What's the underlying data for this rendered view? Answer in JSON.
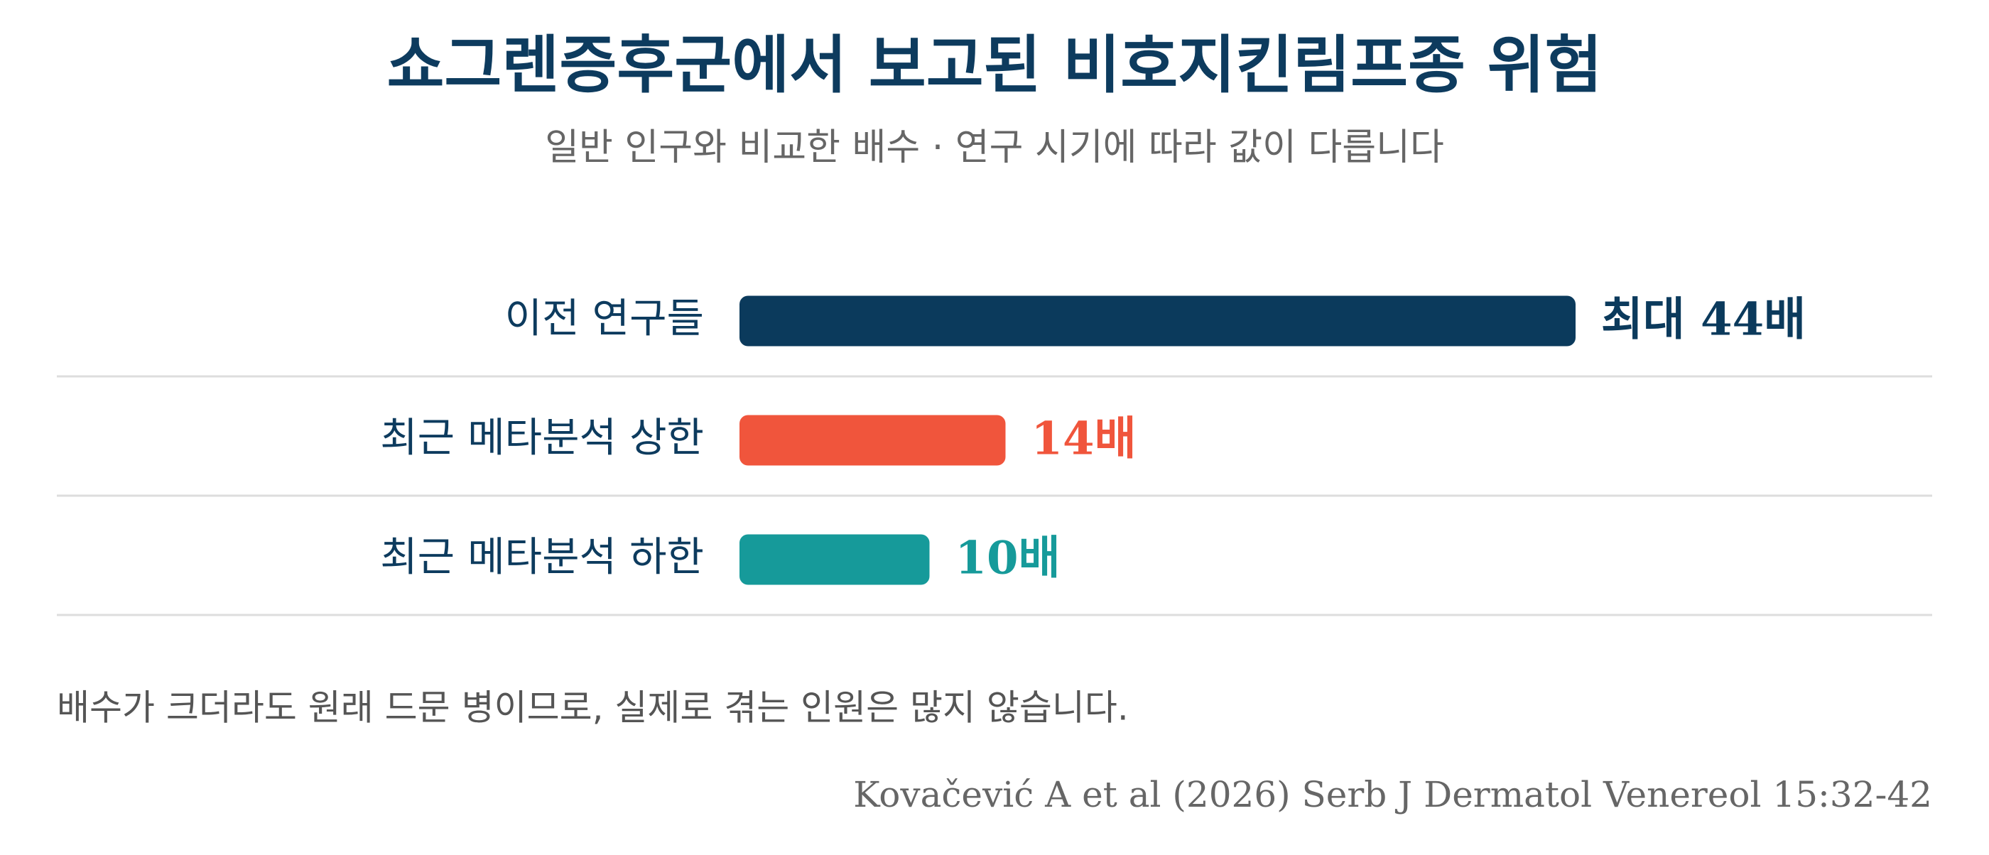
{
  "chart_data": {
    "type": "hbar",
    "title": "쇼그렌증후군에서 보고된 비호지킨림프종 위험",
    "subtitle": "일반 인구와 비교한 배수 · 연구 시기에 따라 값이 다릅니다",
    "categories": [
      "이전 연구들",
      "최근 메타분석 상한",
      "최근 메타분석 하한"
    ],
    "values": [
      44,
      14,
      10
    ],
    "value_labels": [
      "최대 44배",
      "14배",
      "10배"
    ],
    "colors": [
      "#0b3a5c",
      "#f0553c",
      "#169a9a"
    ],
    "note": "배수가 크더라도 원래 드문 병이므로, 실제로 겪는 인원은 많지 않습니다.",
    "source": "Kovačević A et al (2026) Serb J Dermatol Venereol 15:32-42"
  }
}
